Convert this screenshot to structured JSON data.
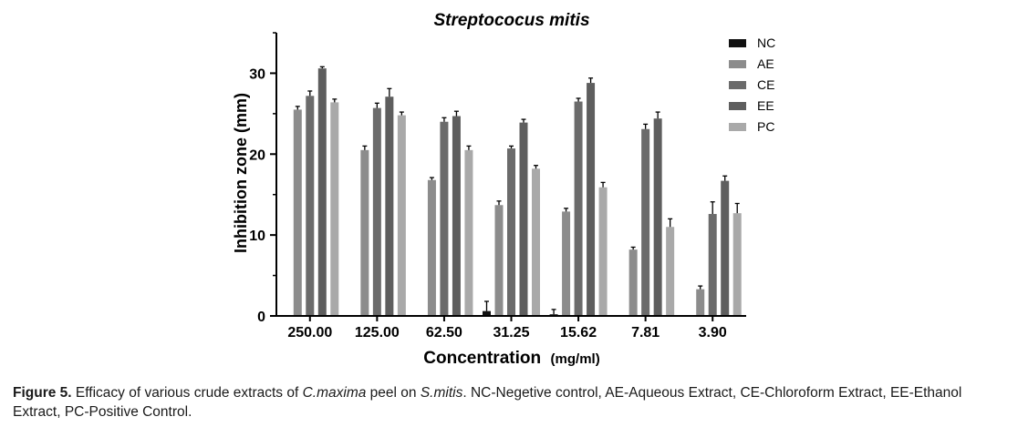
{
  "chart_data": {
    "type": "bar",
    "title": "Streptococus mitis",
    "xlabel": "Concentration",
    "xlabel_unit": "(mg/ml)",
    "ylabel": "Inhibition zone (mm)",
    "ylim": [
      0,
      35
    ],
    "yticks": [
      0,
      10,
      20,
      30
    ],
    "grid": false,
    "legend_position": "top-right",
    "categories": [
      "250.00",
      "125.00",
      "62.50",
      "31.25",
      "15.62",
      "7.81",
      "3.90"
    ],
    "series": [
      {
        "name": "NC",
        "color": "#111111",
        "values": [
          0,
          0,
          0,
          0.6,
          0.2,
          0,
          0
        ],
        "errors": [
          0,
          0,
          0,
          1.2,
          0.6,
          0,
          0
        ]
      },
      {
        "name": "AE",
        "color": "#8c8c8c",
        "values": [
          25.5,
          20.5,
          16.8,
          13.7,
          12.9,
          8.2,
          3.3
        ],
        "errors": [
          0.4,
          0.5,
          0.3,
          0.5,
          0.4,
          0.3,
          0.4
        ]
      },
      {
        "name": "CE",
        "color": "#6b6b6b",
        "values": [
          27.2,
          25.7,
          24.0,
          20.7,
          26.5,
          23.1,
          12.6
        ],
        "errors": [
          0.6,
          0.6,
          0.5,
          0.3,
          0.4,
          0.6,
          1.5
        ]
      },
      {
        "name": "EE",
        "color": "#5e5e5e",
        "values": [
          30.6,
          27.1,
          24.7,
          23.9,
          28.8,
          24.4,
          16.7
        ],
        "errors": [
          0.2,
          1.0,
          0.6,
          0.4,
          0.6,
          0.8,
          0.6
        ]
      },
      {
        "name": "PC",
        "color": "#a9a9a9",
        "values": [
          26.4,
          24.8,
          20.5,
          18.2,
          15.9,
          11.0,
          12.7
        ],
        "errors": [
          0.4,
          0.4,
          0.5,
          0.4,
          0.6,
          1.0,
          1.2
        ]
      }
    ]
  },
  "caption": {
    "figure_label": "Figure 5.",
    "text_1": " Efficacy of various crude extracts of ",
    "italic_1": "C.maxima",
    "text_2": " peel on ",
    "italic_2": "S.mitis",
    "text_3": ". NC-Negetive control, AE-Aqueous Extract, CE-Chloroform Extract, EE-Ethanol Extract, PC-Positive Control."
  }
}
